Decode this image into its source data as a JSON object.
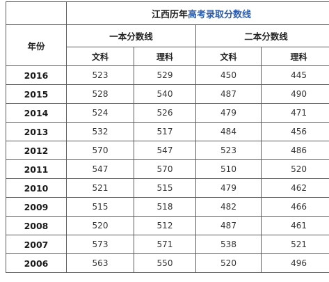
{
  "table": {
    "title_prefix": "江西历年",
    "title_link": "高考录取分数线",
    "year_header": "年份",
    "groups": [
      "一本分数线",
      "二本分数线"
    ],
    "subheaders": [
      "文科",
      "理科",
      "文科",
      "理科"
    ],
    "rows": [
      {
        "year": "2016",
        "values": [
          "523",
          "529",
          "450",
          "445"
        ]
      },
      {
        "year": "2015",
        "values": [
          "528",
          "540",
          "487",
          "490"
        ]
      },
      {
        "year": "2014",
        "values": [
          "524",
          "526",
          "479",
          "471"
        ]
      },
      {
        "year": "2013",
        "values": [
          "532",
          "517",
          "484",
          "456"
        ]
      },
      {
        "year": "2012",
        "values": [
          "570",
          "547",
          "523",
          "486"
        ]
      },
      {
        "year": "2011",
        "values": [
          "547",
          "570",
          "510",
          "520"
        ]
      },
      {
        "year": "2010",
        "values": [
          "521",
          "515",
          "479",
          "462"
        ]
      },
      {
        "year": "2009",
        "values": [
          "515",
          "518",
          "482",
          "466"
        ]
      },
      {
        "year": "2008",
        "values": [
          "520",
          "512",
          "487",
          "461"
        ]
      },
      {
        "year": "2007",
        "values": [
          "573",
          "571",
          "538",
          "521"
        ]
      },
      {
        "year": "2006",
        "values": [
          "563",
          "550",
          "520",
          "496"
        ]
      }
    ]
  },
  "colors": {
    "link": "#2a5db0",
    "border": "#5a5a5a",
    "text": "#222222"
  }
}
